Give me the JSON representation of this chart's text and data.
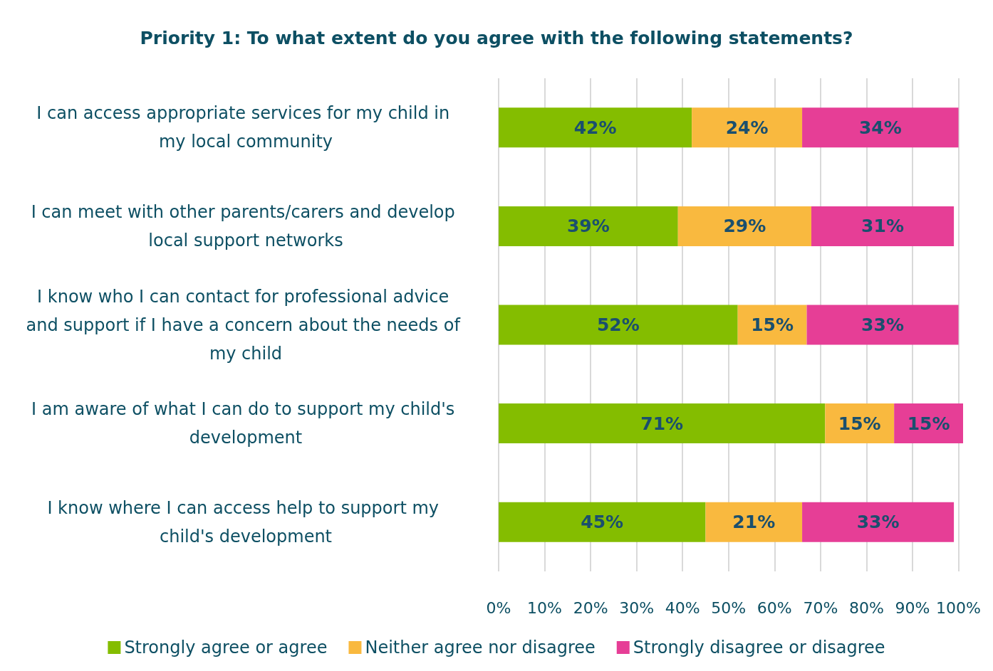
{
  "chart_data": {
    "type": "bar",
    "orientation": "horizontal",
    "stacked": true,
    "title": "Priority 1: To what extent do you agree with the following statements?",
    "categories": [
      "I can access appropriate services for my child in my local community",
      "I can meet with other parents/carers and develop local support networks",
      "I know who I can contact for professional advice and support if I have a concern about the needs of my child",
      "I am aware of what I can do to support my child's development",
      "I know where I can access help to support my child's development"
    ],
    "series": [
      {
        "name": "Strongly agree or agree",
        "color": "#84bd00",
        "values": [
          42,
          39,
          52,
          71,
          45
        ],
        "value_labels": [
          "42%",
          "39%",
          "52%",
          "71%",
          "45%"
        ]
      },
      {
        "name": "Neither agree nor disagree",
        "color": "#f9b93f",
        "values": [
          24,
          29,
          15,
          15,
          21
        ],
        "value_labels": [
          "24%",
          "29%",
          "15%",
          "15%",
          "21%"
        ]
      },
      {
        "name": "Strongly disagree or disagree",
        "color": "#e63e96",
        "values": [
          34,
          31,
          33,
          15,
          33
        ],
        "value_labels": [
          "34%",
          "31%",
          "33%",
          "15%",
          "33%"
        ]
      }
    ],
    "xlim": [
      0,
      101
    ],
    "xticks": [
      {
        "value": 0,
        "label": "0%"
      },
      {
        "value": 10,
        "label": "10%"
      },
      {
        "value": 20,
        "label": "20%"
      },
      {
        "value": 30,
        "label": "30%"
      },
      {
        "value": 40,
        "label": "40%"
      },
      {
        "value": 50,
        "label": "50%"
      },
      {
        "value": 60,
        "label": "60%"
      },
      {
        "value": 70,
        "label": "70%"
      },
      {
        "value": 80,
        "label": "80%"
      },
      {
        "value": 90,
        "label": "90%"
      },
      {
        "value": 100,
        "label": "100%"
      }
    ],
    "grid": "x",
    "legend": "bottom"
  }
}
